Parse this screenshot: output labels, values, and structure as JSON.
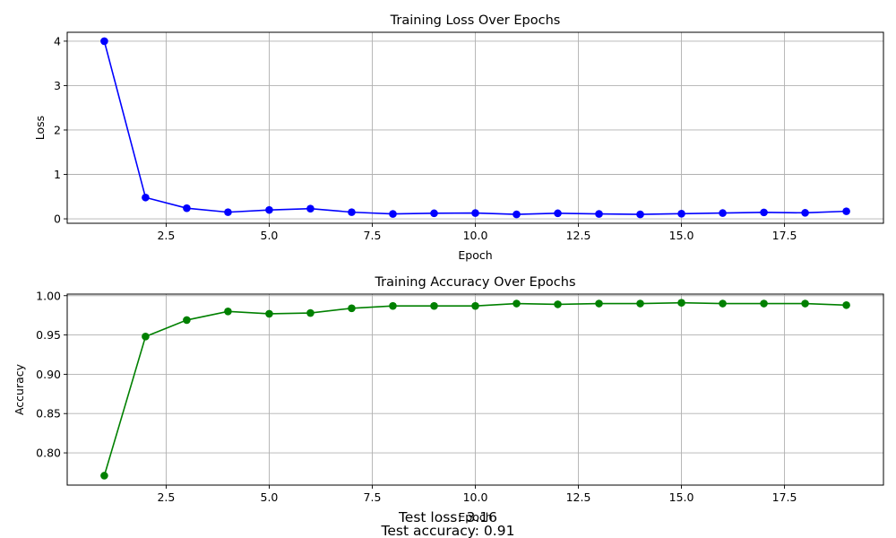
{
  "chart_data": [
    {
      "type": "line",
      "title": "Training Loss Over Epochs",
      "xlabel": "Epoch",
      "ylabel": "Loss",
      "xlim": [
        0.1,
        19.9
      ],
      "ylim": [
        -0.1,
        4.2
      ],
      "xticks": [
        2.5,
        5.0,
        7.5,
        10.0,
        12.5,
        15.0,
        17.5
      ],
      "xtick_labels": [
        "2.5",
        "5.0",
        "7.5",
        "10.0",
        "12.5",
        "15.0",
        "17.5"
      ],
      "yticks": [
        0,
        1,
        2,
        3,
        4
      ],
      "ytick_labels": [
        "0",
        "1",
        "2",
        "3",
        "4"
      ],
      "grid": true,
      "color": "#0000ff",
      "marker": "circle",
      "series": [
        {
          "x": [
            1,
            2,
            3,
            4,
            5,
            6,
            7,
            8,
            9,
            10,
            11,
            12,
            13,
            14,
            15,
            16,
            17,
            18,
            19
          ],
          "values": [
            4.0,
            0.48,
            0.24,
            0.15,
            0.2,
            0.23,
            0.15,
            0.11,
            0.125,
            0.13,
            0.1,
            0.125,
            0.11,
            0.1,
            0.115,
            0.13,
            0.145,
            0.135,
            0.17
          ]
        }
      ]
    },
    {
      "type": "line",
      "title": "Training Accuracy Over Epochs",
      "xlabel": "Epoch",
      "ylabel": "Accuracy",
      "xlim": [
        0.1,
        19.9
      ],
      "ylim": [
        0.759,
        1.002
      ],
      "xticks": [
        2.5,
        5.0,
        7.5,
        10.0,
        12.5,
        15.0,
        17.5
      ],
      "xtick_labels": [
        "2.5",
        "5.0",
        "7.5",
        "10.0",
        "12.5",
        "15.0",
        "17.5"
      ],
      "yticks": [
        0.8,
        0.85,
        0.9,
        0.95,
        1.0
      ],
      "ytick_labels": [
        "0.80",
        "0.85",
        "0.90",
        "0.95",
        "1.00"
      ],
      "grid": true,
      "color": "#008000",
      "marker": "circle",
      "series": [
        {
          "x": [
            1,
            2,
            3,
            4,
            5,
            6,
            7,
            8,
            9,
            10,
            11,
            12,
            13,
            14,
            15,
            16,
            17,
            18,
            19
          ],
          "values": [
            0.771,
            0.948,
            0.969,
            0.98,
            0.977,
            0.978,
            0.984,
            0.987,
            0.987,
            0.987,
            0.99,
            0.989,
            0.99,
            0.99,
            0.991,
            0.99,
            0.99,
            0.99,
            0.988
          ]
        }
      ]
    }
  ],
  "captions": {
    "test_loss": "Test loss: 3.16",
    "test_accuracy": "Test accuracy: 0.91"
  }
}
